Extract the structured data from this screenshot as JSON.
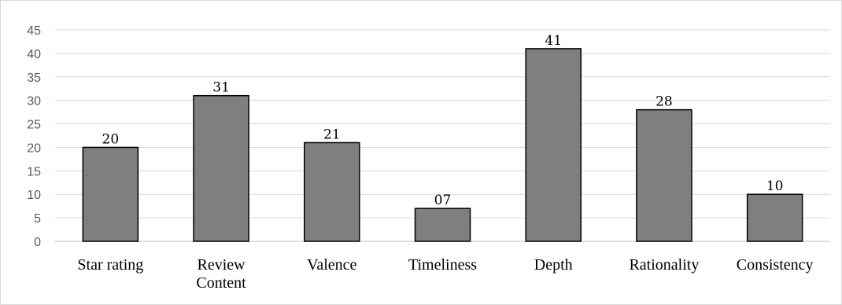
{
  "chart_data": {
    "type": "bar",
    "categories": [
      [
        "Star rating"
      ],
      [
        "Review",
        "Content"
      ],
      [
        "Valence"
      ],
      [
        "Timeliness"
      ],
      [
        "Depth"
      ],
      [
        "Rationality"
      ],
      [
        "Consistency"
      ]
    ],
    "values": [
      20,
      31,
      21,
      7,
      41,
      28,
      10
    ],
    "data_labels": [
      "20",
      "31",
      "21",
      "07",
      "41",
      "28",
      "10"
    ],
    "title": "",
    "xlabel": "",
    "ylabel": "",
    "ylim": [
      0,
      45
    ],
    "yticks": [
      0,
      5,
      10,
      15,
      20,
      25,
      30,
      35,
      40,
      45
    ],
    "grid": true,
    "legend": "none",
    "colors": {
      "bar_fill": "#7f7f7f",
      "bar_stroke": "#000000",
      "grid": "#d9d9d9",
      "axis": "#bfbfbf",
      "tick_text": "#595959"
    }
  }
}
